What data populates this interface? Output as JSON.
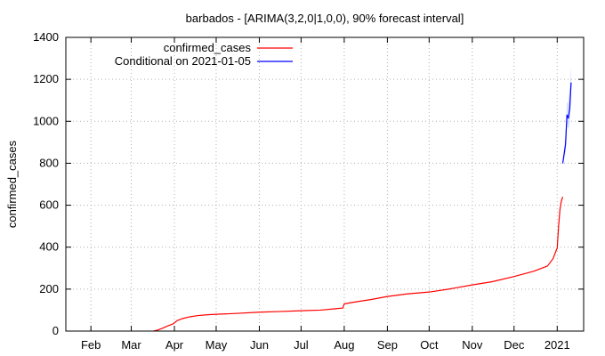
{
  "chart_data": {
    "type": "line",
    "title": "barbados -  [ARIMA(3,2,0|1,0,0), 90% forecast interval]",
    "ylabel": "confirmed_cases",
    "xlabel": "",
    "ylim": [
      0,
      1400
    ],
    "xlim": [
      "2020-01-14",
      "2021-01-20"
    ],
    "yticks": [
      "0",
      "200",
      "400",
      "600",
      "800",
      "1000",
      "1200",
      "1400"
    ],
    "xticks": [
      {
        "date": "2020-02-01",
        "label": "Feb"
      },
      {
        "date": "2020-03-01",
        "label": "Mar"
      },
      {
        "date": "2020-04-01",
        "label": "Apr"
      },
      {
        "date": "2020-05-01",
        "label": "May"
      },
      {
        "date": "2020-06-01",
        "label": "Jun"
      },
      {
        "date": "2020-07-01",
        "label": "Jul"
      },
      {
        "date": "2020-08-01",
        "label": "Aug"
      },
      {
        "date": "2020-09-01",
        "label": "Sep"
      },
      {
        "date": "2020-10-01",
        "label": "Oct"
      },
      {
        "date": "2020-11-01",
        "label": "Nov"
      },
      {
        "date": "2020-12-01",
        "label": "Dec"
      },
      {
        "date": "2021-01-01",
        "label": "2021"
      }
    ],
    "grid": true,
    "legend_position": "top-left",
    "series": [
      {
        "name": "confirmed_cases",
        "color": "#ff0000",
        "points": [
          [
            "2020-03-17",
            0
          ],
          [
            "2020-03-20",
            5
          ],
          [
            "2020-03-24",
            15
          ],
          [
            "2020-03-27",
            24
          ],
          [
            "2020-03-31",
            34
          ],
          [
            "2020-04-03",
            50
          ],
          [
            "2020-04-07",
            60
          ],
          [
            "2020-04-12",
            68
          ],
          [
            "2020-04-18",
            74
          ],
          [
            "2020-04-25",
            78
          ],
          [
            "2020-05-01",
            80
          ],
          [
            "2020-05-15",
            84
          ],
          [
            "2020-06-01",
            90
          ],
          [
            "2020-06-15",
            93
          ],
          [
            "2020-07-01",
            97
          ],
          [
            "2020-07-15",
            100
          ],
          [
            "2020-07-25",
            106
          ],
          [
            "2020-07-31",
            110
          ],
          [
            "2020-08-01",
            130
          ],
          [
            "2020-08-10",
            140
          ],
          [
            "2020-08-20",
            150
          ],
          [
            "2020-09-01",
            165
          ],
          [
            "2020-09-15",
            177
          ],
          [
            "2020-10-01",
            186
          ],
          [
            "2020-10-15",
            200
          ],
          [
            "2020-11-01",
            220
          ],
          [
            "2020-11-15",
            235
          ],
          [
            "2020-12-01",
            260
          ],
          [
            "2020-12-15",
            285
          ],
          [
            "2020-12-25",
            310
          ],
          [
            "2020-12-29",
            345
          ],
          [
            "2020-12-31",
            380
          ],
          [
            "2021-01-01",
            395
          ],
          [
            "2021-01-02",
            500
          ],
          [
            "2021-01-03",
            580
          ],
          [
            "2021-01-04",
            620
          ],
          [
            "2021-01-05",
            640
          ]
        ]
      },
      {
        "name": "Conditional on 2021-01-05",
        "color": "#0000ff",
        "points": [
          [
            "2021-01-05",
            800
          ],
          [
            "2021-01-06",
            845
          ],
          [
            "2021-01-07",
            890
          ],
          [
            "2021-01-08",
            1030
          ],
          [
            "2021-01-09",
            1015
          ],
          [
            "2021-01-10",
            1060
          ],
          [
            "2021-01-11",
            1185
          ]
        ],
        "interval_upper": [
          820,
          880,
          940,
          1090,
          1090,
          1160,
          1260
        ],
        "interval_lower": [
          790,
          820,
          850,
          990,
          960,
          990,
          1120
        ]
      }
    ]
  }
}
